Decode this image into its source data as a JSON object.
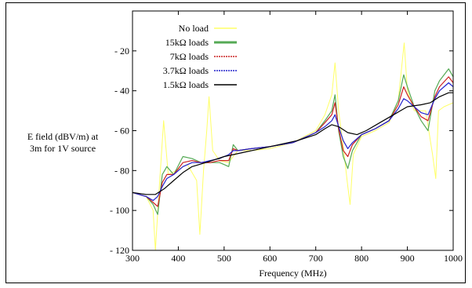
{
  "chart_data": {
    "type": "line",
    "xlabel": "Frequency (MHz)",
    "ylabel_line1": "E field (dBV/m) at",
    "ylabel_line2": "3m for 1V source",
    "xlim": [
      300,
      1000
    ],
    "ylim": [
      -120,
      0
    ],
    "xticks": [
      300,
      400,
      500,
      600,
      700,
      800,
      900,
      1000
    ],
    "yticks": [
      -120,
      -100,
      -80,
      -60,
      -40,
      -20
    ],
    "grid": false,
    "legend_position": "top-left",
    "series": [
      {
        "name": "No load",
        "color": "#ffff66",
        "x": [
          300,
          330,
          345,
          350,
          358,
          368,
          378,
          395,
          420,
          440,
          447,
          455,
          462,
          467,
          475,
          490,
          510,
          520,
          530,
          560,
          600,
          650,
          700,
          720,
          735,
          742,
          750,
          760,
          770,
          775,
          782,
          800,
          830,
          860,
          880,
          893,
          900,
          915,
          940,
          955,
          962,
          968,
          980,
          1000
        ],
        "y": [
          -91,
          -93,
          -100,
          -120,
          -90,
          -55,
          -82,
          -80,
          -77,
          -85,
          -112,
          -80,
          -60,
          -43,
          -70,
          -75,
          -76,
          -73,
          -70,
          -70,
          -69,
          -66,
          -60,
          -52,
          -42,
          -26,
          -50,
          -68,
          -88,
          -97,
          -72,
          -63,
          -60,
          -56,
          -45,
          -16,
          -40,
          -50,
          -50,
          -72,
          -84,
          -50,
          -48,
          -46
        ]
      },
      {
        "name": "15kΩ loads",
        "color": "#55aa55",
        "x": [
          300,
          330,
          345,
          355,
          365,
          375,
          390,
          410,
          430,
          450,
          470,
          490,
          500,
          510,
          520,
          530,
          560,
          600,
          650,
          700,
          720,
          735,
          742,
          750,
          760,
          770,
          780,
          800,
          830,
          860,
          880,
          892,
          900,
          915,
          930,
          945,
          960,
          970,
          990,
          1000
        ],
        "y": [
          -91,
          -93,
          -97,
          -102,
          -82,
          -78,
          -82,
          -73,
          -74,
          -76,
          -76,
          -76,
          -77,
          -78,
          -67,
          -70,
          -69,
          -68,
          -66,
          -61,
          -55,
          -50,
          -42,
          -60,
          -73,
          -79,
          -70,
          -62,
          -59,
          -55,
          -45,
          -32,
          -38,
          -48,
          -55,
          -60,
          -40,
          -35,
          -29,
          -33
        ]
      },
      {
        "name": "7kΩ loads",
        "color": "#cc2222",
        "x": [
          300,
          330,
          345,
          355,
          365,
          375,
          390,
          410,
          430,
          450,
          470,
          490,
          500,
          510,
          520,
          530,
          560,
          600,
          650,
          700,
          720,
          735,
          742,
          750,
          760,
          770,
          780,
          800,
          830,
          860,
          880,
          892,
          900,
          915,
          930,
          945,
          960,
          970,
          990,
          1000
        ],
        "y": [
          -91,
          -93,
          -96,
          -98,
          -86,
          -82,
          -82,
          -76,
          -75,
          -76,
          -76,
          -75,
          -75,
          -75,
          -69,
          -70,
          -69,
          -68,
          -66,
          -61,
          -56,
          -52,
          -46,
          -59,
          -70,
          -73,
          -67,
          -62,
          -59,
          -55,
          -47,
          -38,
          -42,
          -48,
          -53,
          -55,
          -43,
          -38,
          -33,
          -36
        ]
      },
      {
        "name": "3.7kΩ loads",
        "color": "#2222cc",
        "x": [
          300,
          330,
          345,
          355,
          365,
          375,
          390,
          410,
          430,
          450,
          470,
          490,
          500,
          510,
          520,
          530,
          560,
          600,
          650,
          700,
          720,
          735,
          742,
          750,
          760,
          770,
          780,
          800,
          830,
          860,
          880,
          892,
          900,
          915,
          930,
          945,
          960,
          970,
          990,
          1000
        ],
        "y": [
          -91,
          -93,
          -95,
          -93,
          -88,
          -84,
          -82,
          -78,
          -76,
          -76,
          -75,
          -74,
          -73,
          -72,
          -70,
          -70,
          -69,
          -68,
          -66,
          -61,
          -58,
          -55,
          -52,
          -58,
          -65,
          -69,
          -66,
          -62,
          -59,
          -55,
          -49,
          -44,
          -45,
          -48,
          -51,
          -52,
          -44,
          -40,
          -36,
          -38
        ]
      },
      {
        "name": "1.5kΩ loads",
        "color": "#000000",
        "x": [
          300,
          330,
          350,
          370,
          390,
          410,
          430,
          460,
          500,
          540,
          580,
          620,
          660,
          700,
          720,
          735,
          750,
          770,
          790,
          810,
          840,
          870,
          900,
          930,
          950,
          970,
          990,
          1000
        ],
        "y": [
          -91,
          -92,
          -92,
          -89,
          -85,
          -81,
          -78,
          -76,
          -73,
          -71,
          -69,
          -67,
          -65,
          -62,
          -59,
          -57,
          -58,
          -61,
          -62,
          -60,
          -56,
          -52,
          -48,
          -47,
          -46,
          -43,
          -41,
          -41
        ]
      }
    ]
  }
}
